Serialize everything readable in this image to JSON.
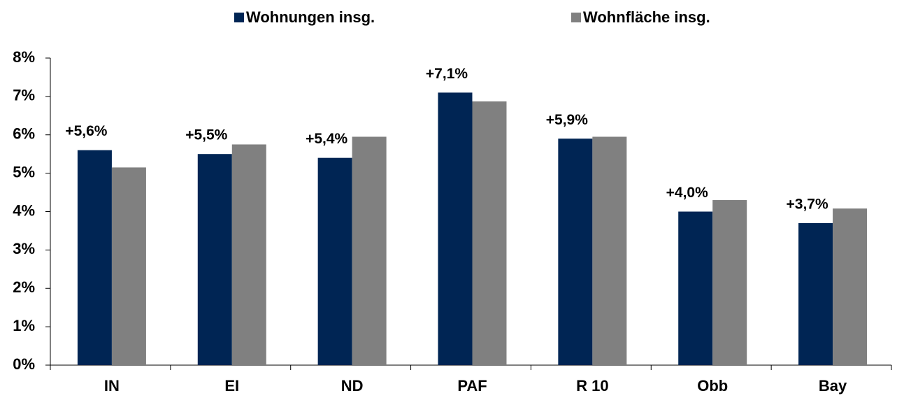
{
  "chart_data": {
    "type": "bar",
    "categories": [
      "IN",
      "EI",
      "ND",
      "PAF",
      "R 10",
      "Obb",
      "Bay"
    ],
    "series": [
      {
        "name": "Wohnungen insg.",
        "color": "#002554",
        "values": [
          5.6,
          5.5,
          5.4,
          7.1,
          5.9,
          4.0,
          3.7
        ],
        "value_labels": [
          "+5,6%",
          "+5,5%",
          "+5,4%",
          "+7,1%",
          "+5,9%",
          "+4,0%",
          "+3,7%"
        ]
      },
      {
        "name": "Wohnfläche insg.",
        "color": "#808080",
        "values": [
          5.15,
          5.75,
          5.95,
          6.87,
          5.95,
          4.3,
          4.08
        ]
      }
    ],
    "ylim": [
      0,
      8
    ],
    "yticks": [
      {
        "value": 0,
        "label": "0%"
      },
      {
        "value": 1,
        "label": "1%"
      },
      {
        "value": 2,
        "label": "2%"
      },
      {
        "value": 3,
        "label": "3%"
      },
      {
        "value": 4,
        "label": "4%"
      },
      {
        "value": 5,
        "label": "5%"
      },
      {
        "value": 6,
        "label": "6%"
      },
      {
        "value": 7,
        "label": "7%"
      },
      {
        "value": 8,
        "label": "8%"
      }
    ],
    "grid": false,
    "legend": "top"
  }
}
